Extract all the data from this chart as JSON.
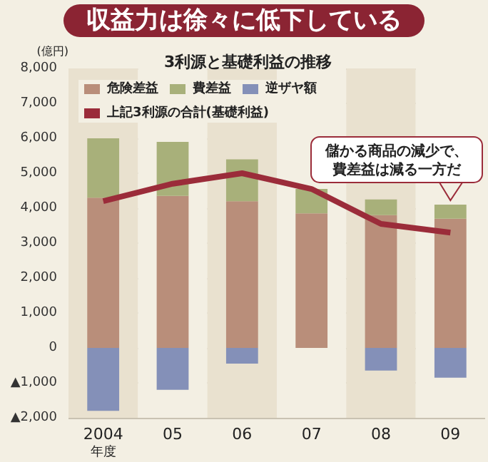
{
  "chart_data": {
    "type": "bar",
    "title": "収益力は徐々に低下している",
    "subtitle": "3利源と基礎利益の推移",
    "ylabel": "(億円)",
    "xlabel": "年度",
    "categories": [
      "2004",
      "05",
      "06",
      "07",
      "08",
      "09"
    ],
    "stacked": true,
    "series": [
      {
        "name": "危険差益",
        "color": "#b98e7a",
        "values": [
          4300,
          4350,
          4200,
          3850,
          3800,
          3700
        ]
      },
      {
        "name": "費差益",
        "color": "#a8b07a",
        "values": [
          1700,
          1550,
          1200,
          700,
          450,
          400
        ]
      },
      {
        "name": "逆ザヤ額",
        "color": "#8490b8",
        "values": [
          -1800,
          -1200,
          -450,
          0,
          -650,
          -850
        ]
      },
      {
        "name": "上記3利源の合計(基礎利益)",
        "type": "line",
        "color": "#9b2c3a",
        "values": [
          4200,
          4700,
          5000,
          4550,
          3550,
          3300
        ]
      }
    ],
    "ylim": [
      -2000,
      8000
    ],
    "yticks": [
      {
        "value": -2000,
        "label": "▲2,000"
      },
      {
        "value": -1000,
        "label": "▲1,000"
      },
      0,
      {
        "value": 1000,
        "label": "1,000"
      },
      {
        "value": 2000,
        "label": "2,000"
      },
      {
        "value": 3000,
        "label": "3,000"
      },
      {
        "value": 4000,
        "label": "4,000"
      },
      {
        "value": 5000,
        "label": "5,000"
      },
      {
        "value": 6000,
        "label": "6,000"
      },
      {
        "value": 7000,
        "label": "7,000"
      },
      {
        "value": 8000,
        "label": "8,000"
      }
    ],
    "grid": "y",
    "legend": "top left",
    "marker": "none",
    "line_style": "solid",
    "annotations": [
      {
        "text": "儲かる商品の減少で、費差益は減る一方だ",
        "x": "09",
        "y": 4100
      }
    ]
  }
}
